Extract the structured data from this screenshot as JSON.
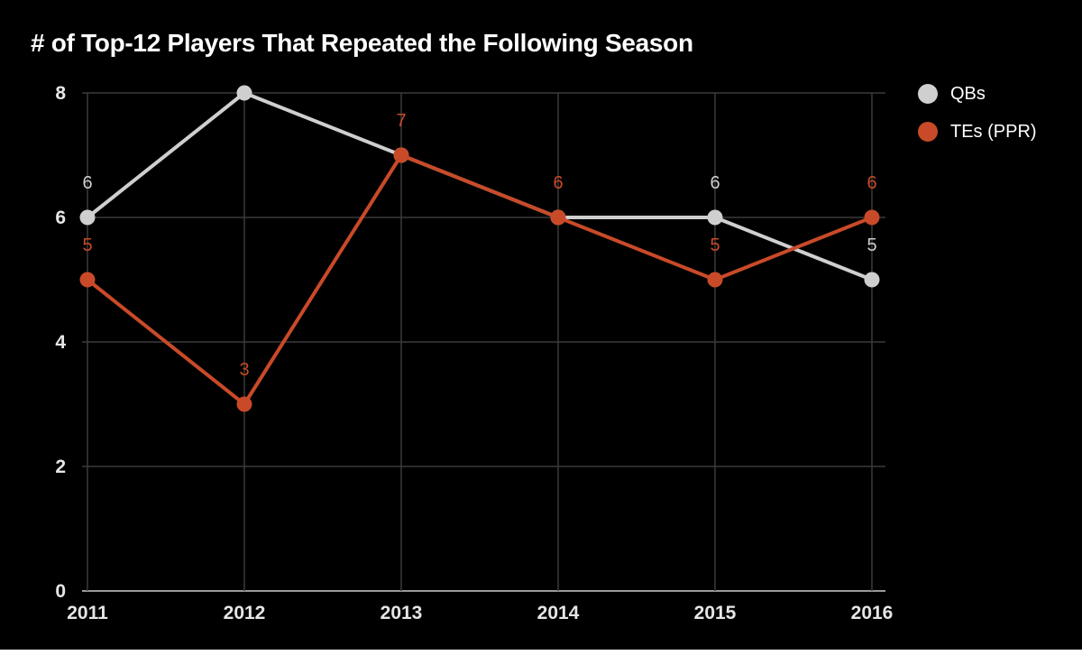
{
  "chart_data": {
    "type": "line",
    "title": "# of Top-12 Players That Repeated the Following Season",
    "categories": [
      "2011",
      "2012",
      "2013",
      "2014",
      "2015",
      "2016"
    ],
    "y_ticks": [
      "0",
      "2",
      "4",
      "6",
      "8"
    ],
    "ylim": [
      0,
      8
    ],
    "grid": true,
    "legend_position": "right",
    "series": [
      {
        "name": "QBs",
        "color": "#cfcfcf",
        "values": [
          6,
          8,
          7,
          6,
          6,
          5
        ],
        "labels": [
          "6",
          "",
          "",
          "",
          "6",
          "5"
        ]
      },
      {
        "name": "TEs (PPR)",
        "color": "#c94a28",
        "values": [
          5,
          3,
          7,
          6,
          5,
          6
        ],
        "labels": [
          "5",
          "3",
          "7",
          "6",
          "5",
          "6"
        ]
      }
    ]
  }
}
